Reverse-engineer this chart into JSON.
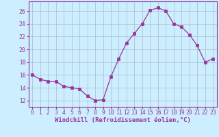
{
  "x": [
    0,
    1,
    2,
    3,
    4,
    5,
    6,
    7,
    8,
    9,
    10,
    11,
    12,
    13,
    14,
    15,
    16,
    17,
    18,
    19,
    20,
    21,
    22,
    23
  ],
  "y": [
    16.0,
    15.3,
    15.0,
    15.0,
    14.2,
    14.0,
    13.8,
    12.7,
    12.0,
    12.1,
    15.7,
    18.5,
    21.0,
    22.5,
    24.0,
    26.1,
    26.5,
    26.0,
    24.0,
    23.5,
    22.3,
    20.6,
    18.0,
    18.5
  ],
  "line_color": "#993399",
  "marker": "s",
  "marker_size": 2.2,
  "bg_color": "#cceeff",
  "grid_color": "#aabbcc",
  "xlabel": "Windchill (Refroidissement éolien,°C)",
  "ylim": [
    11,
    27.5
  ],
  "xlim": [
    -0.5,
    23.5
  ],
  "yticks": [
    12,
    14,
    16,
    18,
    20,
    22,
    24,
    26
  ],
  "xticks": [
    0,
    1,
    2,
    3,
    4,
    5,
    6,
    7,
    8,
    9,
    10,
    11,
    12,
    13,
    14,
    15,
    16,
    17,
    18,
    19,
    20,
    21,
    22,
    23
  ],
  "label_fontsize": 6.5,
  "tick_fontsize": 5.8
}
